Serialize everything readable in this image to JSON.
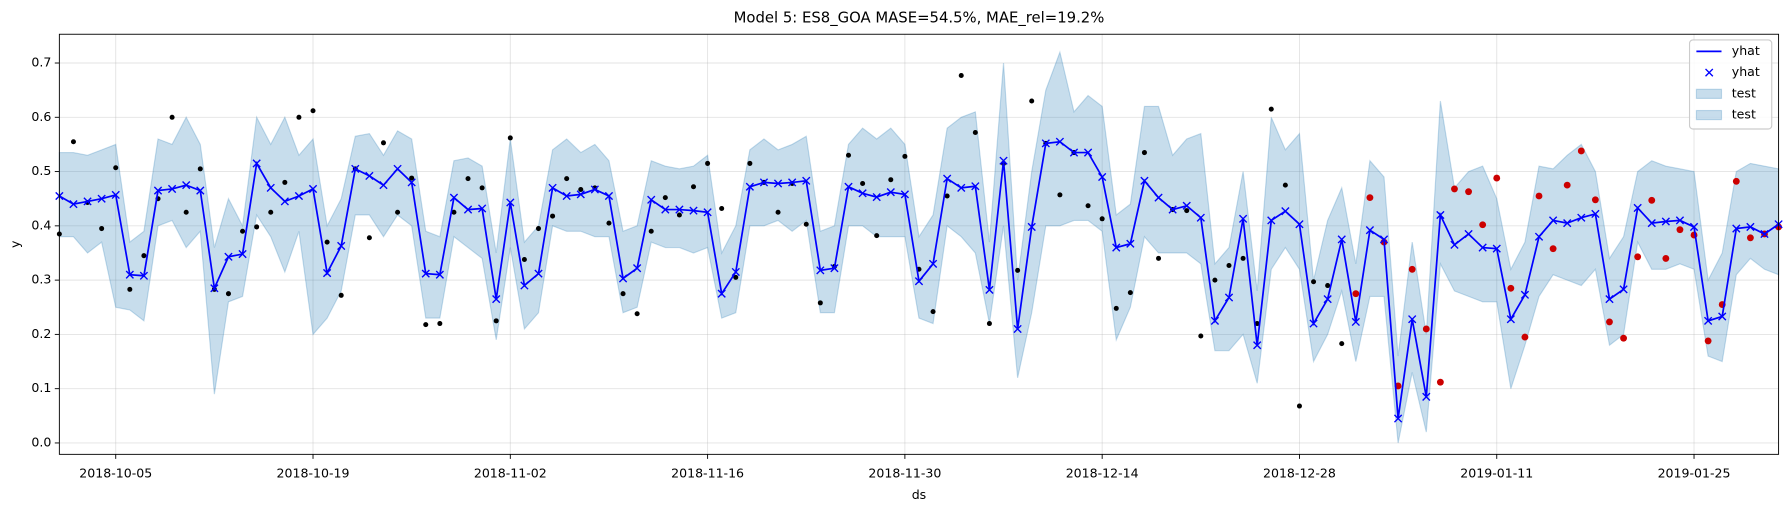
{
  "chart_data": {
    "type": "line",
    "title": "Model 5: ES8_GOA MASE=54.5%, MAE_rel=19.2%",
    "xlabel": "ds",
    "ylabel": "y",
    "xlim": [
      "2018-10-01",
      "2019-01-31"
    ],
    "xticks": [
      "2018-10-05",
      "2018-10-19",
      "2018-11-02",
      "2018-11-16",
      "2018-11-30",
      "2018-12-14",
      "2018-12-28",
      "2019-01-11",
      "2019-01-25"
    ],
    "ylim": [
      -0.021,
      0.753
    ],
    "yticks": [
      {
        "value": 0,
        "label": "0.0"
      },
      0.1,
      0.2,
      0.3,
      0.4,
      0.5,
      0.6,
      0.7
    ],
    "grid": true,
    "x": [
      "2018-10-01",
      "2018-10-02",
      "2018-10-03",
      "2018-10-04",
      "2018-10-05",
      "2018-10-06",
      "2018-10-07",
      "2018-10-08",
      "2018-10-09",
      "2018-10-10",
      "2018-10-11",
      "2018-10-12",
      "2018-10-13",
      "2018-10-14",
      "2018-10-15",
      "2018-10-16",
      "2018-10-17",
      "2018-10-18",
      "2018-10-19",
      "2018-10-20",
      "2018-10-21",
      "2018-10-22",
      "2018-10-23",
      "2018-10-24",
      "2018-10-25",
      "2018-10-26",
      "2018-10-27",
      "2018-10-28",
      "2018-10-29",
      "2018-10-30",
      "2018-10-31",
      "2018-11-01",
      "2018-11-02",
      "2018-11-03",
      "2018-11-04",
      "2018-11-05",
      "2018-11-06",
      "2018-11-07",
      "2018-11-08",
      "2018-11-09",
      "2018-11-10",
      "2018-11-11",
      "2018-11-12",
      "2018-11-13",
      "2018-11-14",
      "2018-11-15",
      "2018-11-16",
      "2018-11-17",
      "2018-11-18",
      "2018-11-19",
      "2018-11-20",
      "2018-11-21",
      "2018-11-22",
      "2018-11-23",
      "2018-11-24",
      "2018-11-25",
      "2018-11-26",
      "2018-11-27",
      "2018-11-28",
      "2018-11-29",
      "2018-11-30",
      "2018-12-01",
      "2018-12-02",
      "2018-12-03",
      "2018-12-04",
      "2018-12-05",
      "2018-12-06",
      "2018-12-07",
      "2018-12-08",
      "2018-12-09",
      "2018-12-10",
      "2018-12-11",
      "2018-12-12",
      "2018-12-13",
      "2018-12-14",
      "2018-12-15",
      "2018-12-16",
      "2018-12-17",
      "2018-12-18",
      "2018-12-19",
      "2018-12-20",
      "2018-12-21",
      "2018-12-22",
      "2018-12-23",
      "2018-12-24",
      "2018-12-25",
      "2018-12-26",
      "2018-12-27",
      "2018-12-28",
      "2018-12-29",
      "2018-12-30",
      "2018-12-31",
      "2019-01-01",
      "2019-01-02",
      "2019-01-03",
      "2019-01-04",
      "2019-01-05",
      "2019-01-06",
      "2019-01-07",
      "2019-01-08",
      "2019-01-09",
      "2019-01-10",
      "2019-01-11",
      "2019-01-12",
      "2019-01-13",
      "2019-01-14",
      "2019-01-15",
      "2019-01-16",
      "2019-01-17",
      "2019-01-18",
      "2019-01-19",
      "2019-01-20",
      "2019-01-21",
      "2019-01-22",
      "2019-01-23",
      "2019-01-24",
      "2019-01-25",
      "2019-01-26",
      "2019-01-27",
      "2019-01-28",
      "2019-01-29",
      "2019-01-30",
      "2019-01-31"
    ],
    "series": [
      {
        "name": "yhat",
        "color": "#0000ff",
        "values": [
          0.455,
          0.44,
          0.445,
          0.45,
          0.457,
          0.31,
          0.308,
          0.465,
          0.468,
          0.475,
          0.465,
          0.285,
          0.343,
          0.348,
          0.515,
          0.47,
          0.445,
          0.455,
          0.468,
          0.313,
          0.363,
          0.505,
          0.492,
          0.475,
          0.505,
          0.48,
          0.312,
          0.31,
          0.452,
          0.43,
          0.432,
          0.265,
          0.443,
          0.29,
          0.312,
          0.47,
          0.455,
          0.458,
          0.467,
          0.455,
          0.303,
          0.322,
          0.448,
          0.43,
          0.43,
          0.428,
          0.425,
          0.275,
          0.315,
          0.472,
          0.48,
          0.478,
          0.48,
          0.483,
          0.318,
          0.322,
          0.472,
          0.46,
          0.453,
          0.462,
          0.458,
          0.298,
          0.33,
          0.487,
          0.47,
          0.473,
          0.282,
          0.52,
          0.21,
          0.398,
          0.552,
          0.555,
          0.535,
          0.535,
          0.49,
          0.36,
          0.367,
          0.483,
          0.452,
          0.43,
          0.437,
          0.415,
          0.225,
          0.268,
          0.413,
          0.18,
          0.41,
          0.427,
          0.403,
          0.22,
          0.265,
          0.375,
          0.223,
          0.392,
          0.375,
          0.045,
          0.228,
          0.085,
          0.42,
          0.365,
          0.385,
          0.36,
          0.358,
          0.228,
          0.273,
          0.38,
          0.41,
          0.405,
          0.415,
          0.422,
          0.265,
          0.283,
          0.433,
          0.405,
          0.408,
          0.41,
          0.398,
          0.225,
          0.233,
          0.395,
          0.398,
          0.385,
          0.403
        ]
      }
    ],
    "band": {
      "color": "#1f77b4",
      "upper": [
        0.535,
        0.535,
        0.53,
        0.54,
        0.55,
        0.37,
        0.39,
        0.56,
        0.55,
        0.6,
        0.55,
        0.36,
        0.45,
        0.4,
        0.6,
        0.55,
        0.6,
        0.53,
        0.56,
        0.4,
        0.45,
        0.565,
        0.57,
        0.53,
        0.575,
        0.56,
        0.39,
        0.38,
        0.52,
        0.525,
        0.51,
        0.35,
        0.56,
        0.37,
        0.4,
        0.54,
        0.56,
        0.535,
        0.55,
        0.52,
        0.39,
        0.4,
        0.52,
        0.51,
        0.505,
        0.51,
        0.53,
        0.35,
        0.4,
        0.54,
        0.56,
        0.54,
        0.55,
        0.565,
        0.39,
        0.4,
        0.55,
        0.58,
        0.56,
        0.58,
        0.55,
        0.38,
        0.42,
        0.58,
        0.6,
        0.61,
        0.37,
        0.7,
        0.3,
        0.5,
        0.65,
        0.72,
        0.61,
        0.64,
        0.62,
        0.42,
        0.44,
        0.62,
        0.62,
        0.53,
        0.56,
        0.57,
        0.33,
        0.36,
        0.5,
        0.28,
        0.6,
        0.54,
        0.57,
        0.3,
        0.41,
        0.47,
        0.33,
        0.52,
        0.49,
        0.16,
        0.37,
        0.2,
        0.63,
        0.47,
        0.5,
        0.51,
        0.45,
        0.32,
        0.37,
        0.51,
        0.505,
        0.53,
        0.55,
        0.5,
        0.34,
        0.38,
        0.5,
        0.52,
        0.51,
        0.505,
        0.5,
        0.3,
        0.35,
        0.5,
        0.515,
        0.51,
        0.505
      ],
      "lower": [
        0.38,
        0.38,
        0.35,
        0.37,
        0.25,
        0.245,
        0.225,
        0.4,
        0.41,
        0.36,
        0.39,
        0.09,
        0.26,
        0.27,
        0.42,
        0.38,
        0.315,
        0.39,
        0.2,
        0.23,
        0.28,
        0.42,
        0.42,
        0.38,
        0.42,
        0.4,
        0.23,
        0.23,
        0.38,
        0.36,
        0.34,
        0.19,
        0.36,
        0.21,
        0.24,
        0.4,
        0.39,
        0.39,
        0.38,
        0.38,
        0.24,
        0.25,
        0.37,
        0.36,
        0.36,
        0.35,
        0.36,
        0.23,
        0.24,
        0.4,
        0.4,
        0.41,
        0.39,
        0.41,
        0.24,
        0.24,
        0.4,
        0.4,
        0.38,
        0.38,
        0.38,
        0.23,
        0.22,
        0.4,
        0.38,
        0.35,
        0.22,
        0.4,
        0.12,
        0.24,
        0.4,
        0.4,
        0.41,
        0.41,
        0.39,
        0.19,
        0.25,
        0.38,
        0.35,
        0.35,
        0.35,
        0.33,
        0.17,
        0.17,
        0.2,
        0.11,
        0.32,
        0.36,
        0.32,
        0.15,
        0.2,
        0.28,
        0.15,
        0.27,
        0.27,
        0.0,
        0.13,
        0.02,
        0.33,
        0.28,
        0.27,
        0.26,
        0.26,
        0.1,
        0.18,
        0.27,
        0.31,
        0.3,
        0.29,
        0.32,
        0.18,
        0.2,
        0.37,
        0.32,
        0.32,
        0.33,
        0.32,
        0.16,
        0.15,
        0.31,
        0.34,
        0.32,
        0.31
      ]
    },
    "observed": {
      "color": "#000000",
      "values": [
        0.385,
        0.555,
        0.443,
        0.395,
        0.507,
        0.283,
        0.345,
        0.45,
        0.6,
        0.425,
        0.505,
        0.283,
        0.275,
        0.39,
        0.398,
        0.425,
        0.48,
        0.6,
        0.612,
        0.37,
        0.272,
        0.505,
        0.378,
        0.553,
        0.425,
        0.488,
        0.218,
        0.22,
        0.425,
        0.487,
        0.47,
        0.225,
        0.562,
        0.338,
        0.395,
        0.418,
        0.487,
        0.467,
        0.47,
        0.405,
        0.275,
        0.238,
        0.39,
        0.452,
        0.42,
        0.472,
        0.515,
        0.432,
        0.305,
        0.515,
        0.48,
        0.425,
        0.478,
        0.403,
        0.258,
        0.325,
        0.53,
        0.478,
        0.382,
        0.485,
        0.528,
        0.32,
        0.242,
        0.455,
        0.677,
        0.572,
        0.22,
        0.515,
        0.318,
        0.63,
        0.552,
        0.457,
        0.535,
        0.437,
        0.413,
        0.248,
        0.277,
        0.535,
        0.34,
        0.43,
        0.428,
        0.197,
        0.3,
        0.327,
        0.34,
        0.22,
        0.615,
        0.475,
        0.068,
        0.297,
        0.29,
        0.183,
        null,
        null,
        null,
        null,
        null,
        null,
        null,
        null,
        null,
        null,
        null,
        null,
        null,
        null,
        null,
        null,
        null,
        null,
        null,
        null,
        null,
        null,
        null,
        null,
        null,
        null,
        null,
        null,
        null,
        null,
        null
      ]
    },
    "test_points": {
      "color": "#cc0000",
      "values": [
        null,
        null,
        null,
        null,
        null,
        null,
        null,
        null,
        null,
        null,
        null,
        null,
        null,
        null,
        null,
        null,
        null,
        null,
        null,
        null,
        null,
        null,
        null,
        null,
        null,
        null,
        null,
        null,
        null,
        null,
        null,
        null,
        null,
        null,
        null,
        null,
        null,
        null,
        null,
        null,
        null,
        null,
        null,
        null,
        null,
        null,
        null,
        null,
        null,
        null,
        null,
        null,
        null,
        null,
        null,
        null,
        null,
        null,
        null,
        null,
        null,
        null,
        null,
        null,
        null,
        null,
        null,
        null,
        null,
        null,
        null,
        null,
        null,
        null,
        null,
        null,
        null,
        null,
        null,
        null,
        null,
        null,
        null,
        null,
        null,
        null,
        null,
        null,
        null,
        null,
        null,
        null,
        0.275,
        0.452,
        0.37,
        0.105,
        0.32,
        0.21,
        0.112,
        0.468,
        0.463,
        0.402,
        0.488,
        0.285,
        0.195,
        0.455,
        0.358,
        0.475,
        0.538,
        0.448,
        0.223,
        0.193,
        0.343,
        0.447,
        0.34,
        0.393,
        0.383,
        0.188,
        0.255,
        0.482,
        0.378,
        0.385,
        0.398
      ]
    },
    "legend_position": "upper right",
    "legend": [
      {
        "label": "yhat",
        "style": "line"
      },
      {
        "label": "yhat",
        "style": "marker"
      },
      {
        "label": "test",
        "style": "band"
      },
      {
        "label": "test",
        "style": "band"
      }
    ]
  }
}
